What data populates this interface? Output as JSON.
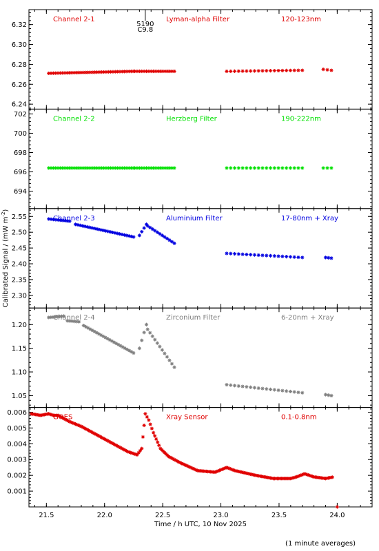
{
  "ylabel_main": "Calibrated Signal / (mW m",
  "ylabel_sup": "-2",
  "ylabel_end": ")",
  "xlabel": "Time / h UTC, 10 Nov 2025",
  "footnote": "(1 minute averages)",
  "x_ticks": [
    "21.5",
    "22.0",
    "22.5",
    "23.0",
    "23.5",
    "24.0"
  ],
  "marker_top": "5190",
  "marker_bottom": "C9.8",
  "chart_data": [
    {
      "type": "scatter",
      "channel": "Channel 2-1",
      "filter": "Lyman-alpha Filter",
      "band": "120-123nm",
      "color": "#e00000",
      "xlim": [
        21.35,
        24.3
      ],
      "ylim": [
        6.235,
        6.335
      ],
      "yticks": [
        "6.24",
        "6.26",
        "6.28",
        "6.30",
        "6.32"
      ],
      "series": [
        {
          "segments": [
            {
              "x": [
                21.52,
                22.25
              ],
              "y": [
                6.271,
                6.273
              ],
              "n": 38
            },
            {
              "x": [
                22.26,
                22.6
              ],
              "y": [
                6.273,
                6.273
              ],
              "n": 18
            },
            {
              "x": [
                23.05,
                23.7
              ],
              "y": [
                6.273,
                6.274
              ],
              "n": 20
            },
            {
              "x": [
                23.88,
                23.95
              ],
              "y": [
                6.275,
                6.274
              ],
              "n": 3
            }
          ]
        }
      ]
    },
    {
      "type": "scatter",
      "channel": "Channel 2-2",
      "filter": "Herzberg Filter",
      "band": "190-222nm",
      "color": "#00e000",
      "xlim": [
        21.35,
        24.3
      ],
      "ylim": [
        692.2,
        702.5
      ],
      "yticks": [
        "694",
        "696",
        "698",
        "700",
        "702"
      ],
      "series": [
        {
          "segments": [
            {
              "x": [
                21.52,
                22.25
              ],
              "y": [
                696.4,
                696.4
              ],
              "n": 38
            },
            {
              "x": [
                22.26,
                22.6
              ],
              "y": [
                696.4,
                696.4
              ],
              "n": 18
            },
            {
              "x": [
                23.05,
                23.7
              ],
              "y": [
                696.4,
                696.4
              ],
              "n": 20
            },
            {
              "x": [
                23.88,
                23.95
              ],
              "y": [
                696.4,
                696.4
              ],
              "n": 3
            }
          ]
        }
      ]
    },
    {
      "type": "scatter",
      "channel": "Channel 2-3",
      "filter": "Aluminium Filter",
      "band": "17-80nm + Xray",
      "color": "#0000e0",
      "xlim": [
        21.35,
        24.3
      ],
      "ylim": [
        2.26,
        2.575
      ],
      "yticks": [
        "2.30",
        "2.35",
        "2.40",
        "2.45",
        "2.50",
        "2.55"
      ],
      "series": [
        {
          "segments": [
            {
              "x": [
                21.52,
                21.7
              ],
              "y": [
                2.542,
                2.535
              ],
              "n": 10
            },
            {
              "x": [
                21.75,
                22.25
              ],
              "y": [
                2.525,
                2.485
              ],
              "n": 26
            },
            {
              "x": [
                22.3,
                22.36
              ],
              "y": [
                2.49,
                2.525
              ],
              "n": 4
            },
            {
              "x": [
                22.37,
                22.6
              ],
              "y": [
                2.52,
                2.465
              ],
              "n": 12
            },
            {
              "x": [
                23.05,
                23.7
              ],
              "y": [
                2.433,
                2.42
              ],
              "n": 20
            },
            {
              "x": [
                23.9,
                23.95
              ],
              "y": [
                2.42,
                2.418
              ],
              "n": 3
            }
          ]
        }
      ]
    },
    {
      "type": "scatter",
      "channel": "Channel 2-4",
      "filter": "Zirconium Filter",
      "band": "6-20nm + Xray",
      "color": "#808080",
      "xlim": [
        21.35,
        24.3
      ],
      "ylim": [
        1.025,
        1.235
      ],
      "yticks": [
        "1.05",
        "1.10",
        "1.15",
        "1.20"
      ],
      "series": [
        {
          "segments": [
            {
              "x": [
                21.52,
                21.65
              ],
              "y": [
                1.215,
                1.218
              ],
              "n": 8
            },
            {
              "x": [
                21.68,
                21.78
              ],
              "y": [
                1.208,
                1.206
              ],
              "n": 6
            },
            {
              "x": [
                21.82,
                22.25
              ],
              "y": [
                1.198,
                1.14
              ],
              "n": 24
            },
            {
              "x": [
                22.3,
                22.36
              ],
              "y": [
                1.15,
                1.2
              ],
              "n": 4
            },
            {
              "x": [
                22.37,
                22.6
              ],
              "y": [
                1.19,
                1.11
              ],
              "n": 12
            },
            {
              "x": [
                23.05,
                23.7
              ],
              "y": [
                1.073,
                1.056
              ],
              "n": 20
            },
            {
              "x": [
                23.9,
                23.95
              ],
              "y": [
                1.052,
                1.05
              ],
              "n": 3
            }
          ]
        }
      ]
    },
    {
      "type": "scatter",
      "channel": "GOES",
      "filter": "Xray Sensor",
      "band": "0.1-0.8nm",
      "color": "#e00000",
      "xlim": [
        21.35,
        24.3
      ],
      "ylim": [
        0.0,
        0.0063
      ],
      "yticks": [
        "0.001",
        "0.002",
        "0.003",
        "0.004",
        "0.005",
        "0.006"
      ],
      "series": [
        {
          "points": [
            [
              21.37,
              0.0059
            ],
            [
              21.45,
              0.0058
            ],
            [
              21.52,
              0.0059
            ],
            [
              21.56,
              0.0058
            ],
            [
              21.6,
              0.0058
            ],
            [
              21.7,
              0.0054
            ],
            [
              21.8,
              0.0051
            ],
            [
              21.9,
              0.0047
            ],
            [
              22.0,
              0.0043
            ],
            [
              22.1,
              0.0039
            ],
            [
              22.2,
              0.0035
            ],
            [
              22.28,
              0.0033
            ],
            [
              22.32,
              0.0037
            ],
            [
              22.35,
              0.0059
            ],
            [
              22.38,
              0.0055
            ],
            [
              22.42,
              0.0047
            ],
            [
              22.48,
              0.0037
            ],
            [
              22.55,
              0.0032
            ],
            [
              22.65,
              0.0028
            ],
            [
              22.8,
              0.0023
            ],
            [
              22.95,
              0.0022
            ],
            [
              23.05,
              0.0025
            ],
            [
              23.12,
              0.0023
            ],
            [
              23.3,
              0.002
            ],
            [
              23.45,
              0.0018
            ],
            [
              23.6,
              0.0018
            ],
            [
              23.65,
              0.0019
            ],
            [
              23.72,
              0.0021
            ],
            [
              23.8,
              0.0019
            ],
            [
              23.9,
              0.0018
            ],
            [
              23.97,
              0.0019
            ],
            [
              24.0,
              0.0
            ]
          ]
        }
      ]
    }
  ]
}
